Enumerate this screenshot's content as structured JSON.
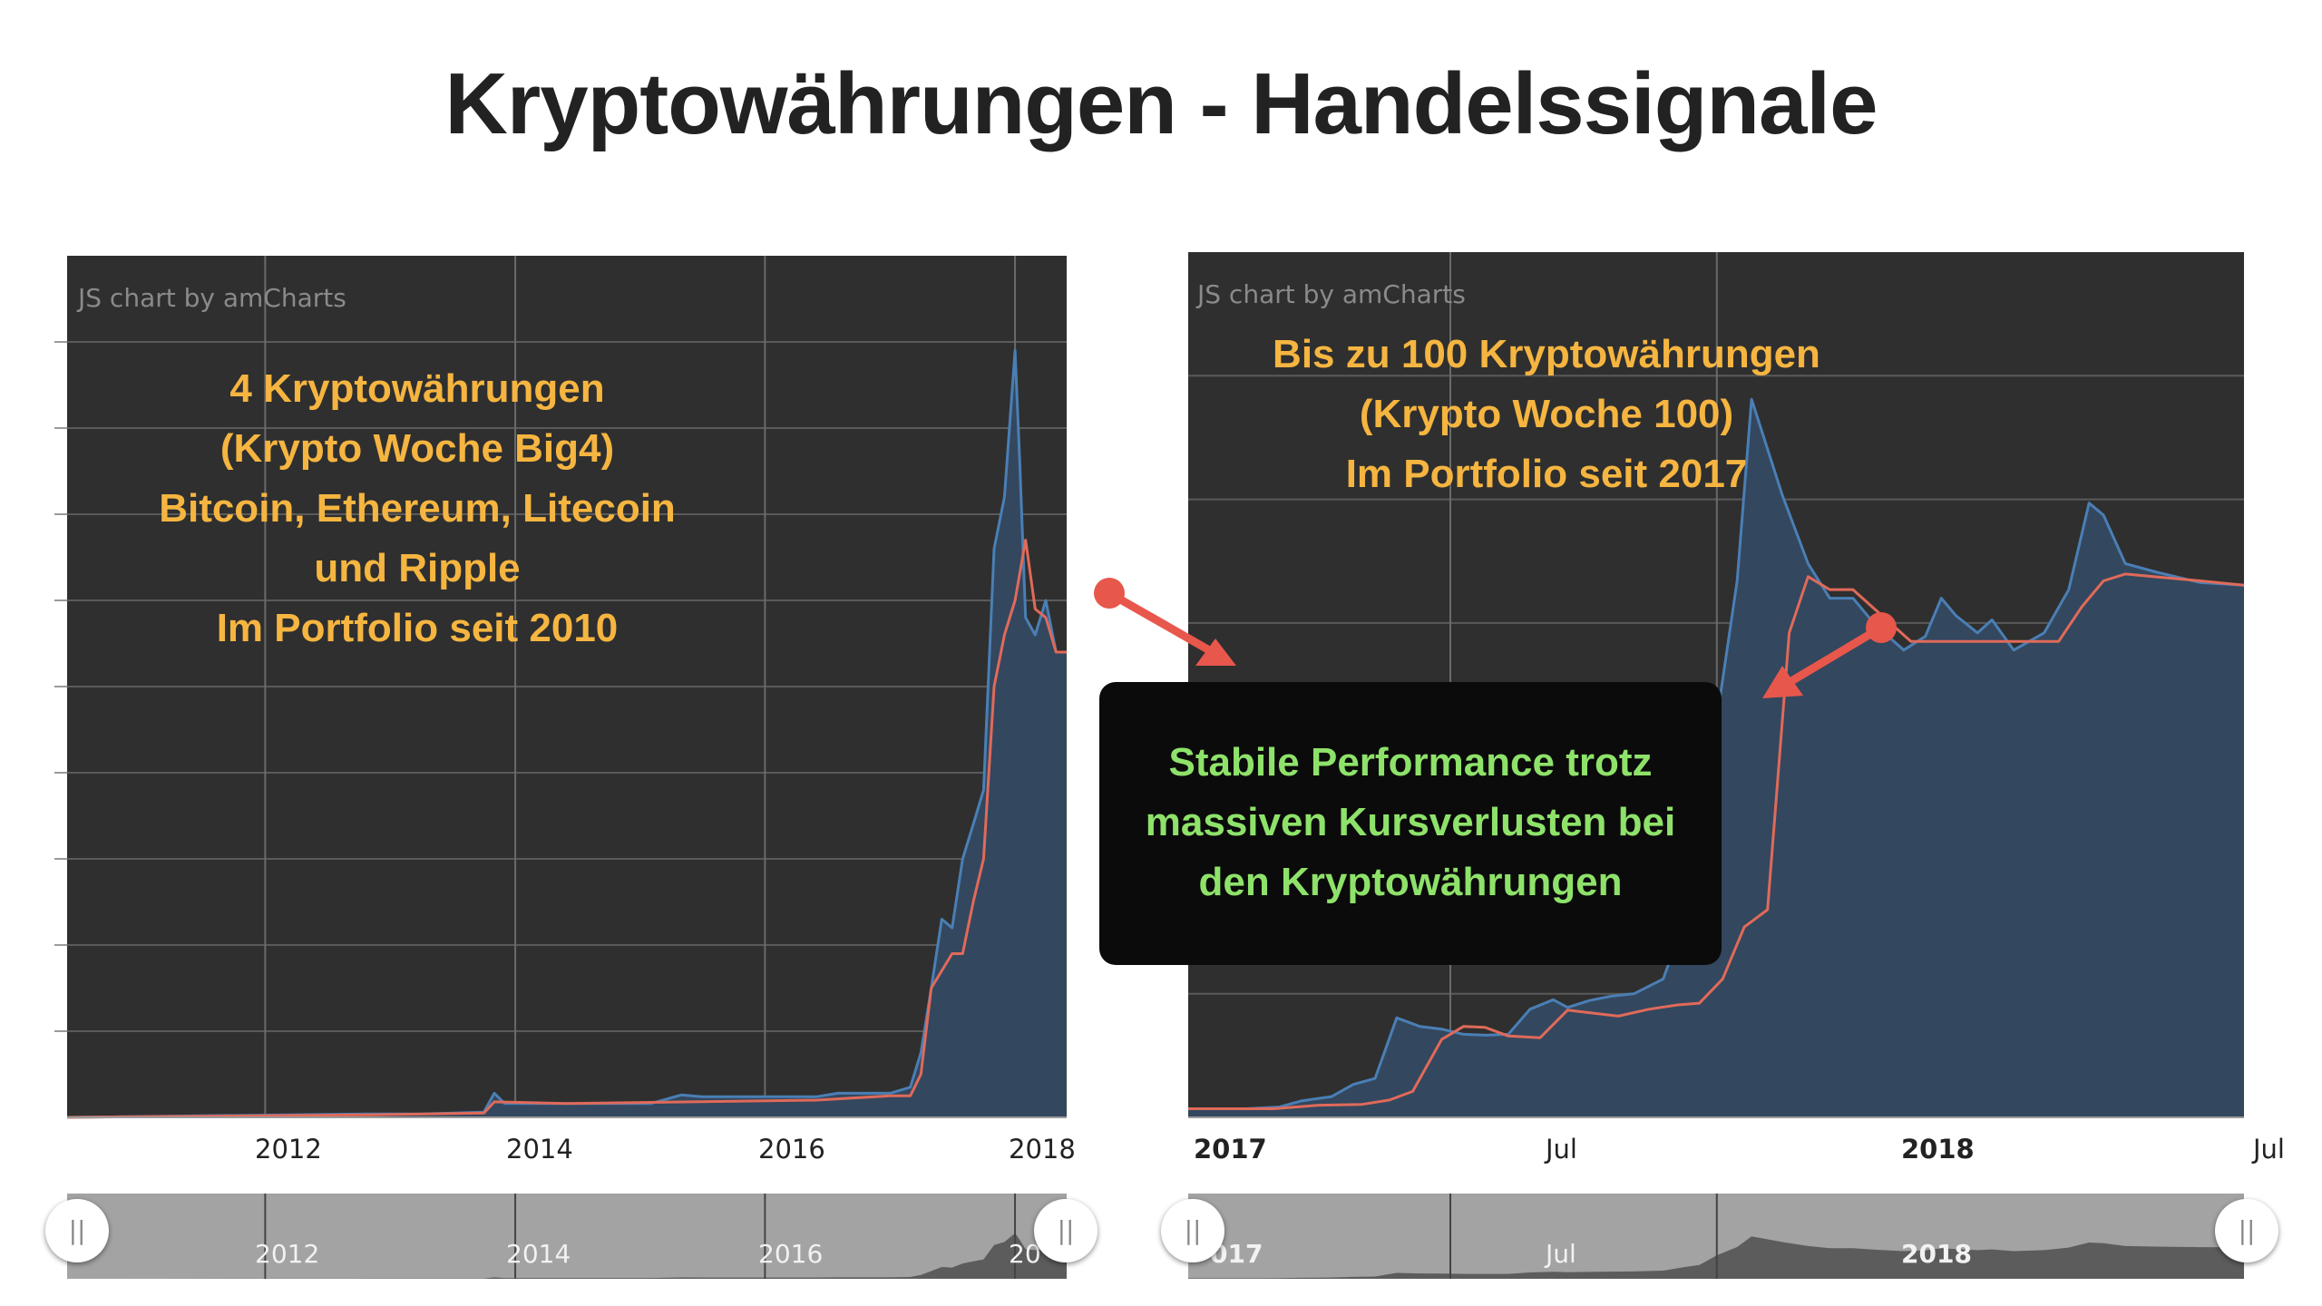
{
  "page": {
    "title": "Kryptowährungen - Handelssignale"
  },
  "colors": {
    "plot_background": "#2f2f2f",
    "series_blue": "#4a7fb5",
    "series_red": "#e06a5a",
    "area_fill": "#33475e",
    "annotation_orange": "#f5b540",
    "annotation_green": "#8ee26a",
    "arrow_red": "#e8574b",
    "scrollbar": "#a3a3a3"
  },
  "left_chart": {
    "watermark": "JS chart by amCharts",
    "annotation_lines": [
      "4 Kryptowährungen",
      "(Krypto Woche Big4)",
      "Bitcoin, Ethereum, Litecoin",
      "und Ripple",
      "Im Portfolio seit 2010"
    ],
    "x_ticks": [
      "2012",
      "2014",
      "2016",
      "2018"
    ],
    "scroll_ticks": [
      "2012",
      "2014",
      "2016",
      "20"
    ],
    "scroll_grip_icon": "grip-icon"
  },
  "right_chart": {
    "watermark": "JS chart by amCharts",
    "annotation_lines": [
      "Bis zu  100 Kryptowährungen",
      "(Krypto Woche 100)",
      "Im Portfolio seit 2017"
    ],
    "x_ticks": [
      "2017",
      "Jul",
      "2018",
      "Jul"
    ],
    "scroll_ticks": [
      "017",
      "Jul",
      "2018"
    ],
    "scroll_grip_icon": "grip-icon"
  },
  "callout": {
    "lines": [
      "Stabile Performance trotz",
      "massiven Kursverlusten bei",
      "den Kryptowährungen"
    ]
  },
  "chart_data": [
    {
      "type": "area",
      "x_axis": "date",
      "x_ticks": [
        "2012",
        "2014",
        "2016",
        "2018"
      ],
      "y_tick_labels": [],
      "grid": true,
      "series": [
        {
          "color": "#4a7fb5",
          "points": [
            [
              "2010-06",
              0
            ],
            [
              "2012-11",
              0.4
            ],
            [
              "2013-04",
              0.4
            ],
            [
              "2013-10",
              0.6
            ],
            [
              "2013-11",
              2.8
            ],
            [
              "2013-12",
              1.6
            ],
            [
              "2014-06",
              1.6
            ],
            [
              "2015-02",
              1.6
            ],
            [
              "2015-05",
              2.6
            ],
            [
              "2015-07",
              2.4
            ],
            [
              "2016-06",
              2.4
            ],
            [
              "2016-08",
              2.8
            ],
            [
              "2017-01",
              2.8
            ],
            [
              "2017-03",
              3.5
            ],
            [
              "2017-04",
              7.5
            ],
            [
              "2017-05",
              15
            ],
            [
              "2017-06",
              23
            ],
            [
              "2017-07",
              22
            ],
            [
              "2017-08",
              30
            ],
            [
              "2017-09",
              34
            ],
            [
              "2017-10",
              38
            ],
            [
              "2017-11",
              66
            ],
            [
              "2017-12",
              72
            ],
            [
              "2018-01",
              89
            ],
            [
              "2018-01-15",
              76
            ],
            [
              "2018-02",
              58
            ],
            [
              "2018-03",
              56
            ],
            [
              "2018-04",
              60
            ],
            [
              "2018-05",
              54
            ],
            [
              "2018-06",
              54
            ]
          ]
        },
        {
          "color": "#e06a5a",
          "points": [
            [
              "2010-06",
              0
            ],
            [
              "2012-11",
              0.3
            ],
            [
              "2013-10",
              0.5
            ],
            [
              "2013-11",
              1.8
            ],
            [
              "2014-06",
              1.6
            ],
            [
              "2015-06",
              1.8
            ],
            [
              "2016-06",
              2.0
            ],
            [
              "2017-01",
              2.5
            ],
            [
              "2017-03",
              2.5
            ],
            [
              "2017-04",
              5
            ],
            [
              "2017-05",
              15
            ],
            [
              "2017-07",
              19
            ],
            [
              "2017-08",
              19
            ],
            [
              "2017-09",
              25
            ],
            [
              "2017-10",
              30
            ],
            [
              "2017-11",
              50
            ],
            [
              "2017-12",
              56
            ],
            [
              "2018-01",
              60
            ],
            [
              "2018-02",
              67
            ],
            [
              "2018-03",
              59
            ],
            [
              "2018-04",
              58
            ],
            [
              "2018-05",
              54
            ],
            [
              "2018-06",
              54
            ]
          ]
        }
      ]
    },
    {
      "type": "area",
      "x_axis": "date",
      "x_ticks": [
        "2017",
        "Jul",
        "2018",
        "Jul"
      ],
      "y_tick_labels": [],
      "grid": true,
      "series": [
        {
          "color": "#4a7fb5",
          "points": [
            [
              "2017-01-01",
              1
            ],
            [
              "2017-01-20",
              1
            ],
            [
              "2017-02-10",
              1
            ],
            [
              "2017-03-05",
              1.2
            ],
            [
              "2017-03-20",
              1.9
            ],
            [
              "2017-04-10",
              2.4
            ],
            [
              "2017-04-25",
              3.8
            ],
            [
              "2017-05-10",
              4.5
            ],
            [
              "2017-05-25",
              11.5
            ],
            [
              "2017-06-10",
              10.5
            ],
            [
              "2017-06-25",
              10.2
            ],
            [
              "2017-07-10",
              9.6
            ],
            [
              "2017-07-25",
              9.5
            ],
            [
              "2017-08-10",
              9.6
            ],
            [
              "2017-08-25",
              12.5
            ],
            [
              "2017-09-10",
              13.6
            ],
            [
              "2017-09-20",
              12.7
            ],
            [
              "2017-10-05",
              13.5
            ],
            [
              "2017-10-20",
              14.0
            ],
            [
              "2017-11-05",
              14.3
            ],
            [
              "2017-11-25",
              16
            ],
            [
              "2017-12-10",
              23
            ],
            [
              "2017-12-20",
              27
            ],
            [
              "2018-01-01",
              46
            ],
            [
              "2018-01-15",
              62
            ],
            [
              "2018-01-25",
              83
            ],
            [
              "2018-02-15",
              72
            ],
            [
              "2018-03-05",
              64
            ],
            [
              "2018-03-20",
              60
            ],
            [
              "2018-04-05",
              60
            ],
            [
              "2018-04-20",
              57
            ],
            [
              "2018-05-10",
              54
            ],
            [
              "2018-05-25",
              55.6
            ],
            [
              "2018-06-05",
              60
            ],
            [
              "2018-06-15",
              58
            ],
            [
              "2018-06-30",
              56
            ],
            [
              "2018-07-10",
              57.5
            ],
            [
              "2018-07-25",
              54
            ],
            [
              "2018-08-15",
              56
            ],
            [
              "2018-09-01",
              61
            ],
            [
              "2018-09-15",
              71
            ],
            [
              "2018-09-25",
              69.6
            ],
            [
              "2018-10-10",
              64
            ],
            [
              "2018-11-01",
              63
            ],
            [
              "2018-12-01",
              61.8
            ],
            [
              "2018-12-31",
              61.5
            ]
          ]
        },
        {
          "color": "#e06a5a",
          "points": [
            [
              "2017-01-01",
              1
            ],
            [
              "2017-03-01",
              1
            ],
            [
              "2017-04-01",
              1.4
            ],
            [
              "2017-05-01",
              1.5
            ],
            [
              "2017-05-20",
              2
            ],
            [
              "2017-06-05",
              3
            ],
            [
              "2017-06-25",
              9
            ],
            [
              "2017-07-10",
              10.5
            ],
            [
              "2017-07-25",
              10.4
            ],
            [
              "2017-08-10",
              9.4
            ],
            [
              "2017-09-01",
              9.2
            ],
            [
              "2017-09-20",
              12.4
            ],
            [
              "2017-10-05",
              12.1
            ],
            [
              "2017-10-25",
              11.7
            ],
            [
              "2017-11-15",
              12.5
            ],
            [
              "2017-12-05",
              13
            ],
            [
              "2017-12-20",
              13.2
            ],
            [
              "2018-01-05",
              16
            ],
            [
              "2018-01-20",
              22
            ],
            [
              "2018-02-05",
              24
            ],
            [
              "2018-02-20",
              56
            ],
            [
              "2018-03-05",
              62.5
            ],
            [
              "2018-03-20",
              61
            ],
            [
              "2018-04-05",
              61
            ],
            [
              "2018-04-25",
              58
            ],
            [
              "2018-05-15",
              55
            ],
            [
              "2018-06-05",
              55
            ],
            [
              "2018-06-25",
              55
            ],
            [
              "2018-07-20",
              55
            ],
            [
              "2018-08-10",
              55
            ],
            [
              "2018-08-25",
              55
            ],
            [
              "2018-09-10",
              59
            ],
            [
              "2018-09-25",
              62
            ],
            [
              "2018-10-10",
              62.8
            ],
            [
              "2018-11-05",
              62.4
            ],
            [
              "2018-12-01",
              62
            ],
            [
              "2018-12-31",
              61.5
            ]
          ]
        }
      ]
    }
  ]
}
